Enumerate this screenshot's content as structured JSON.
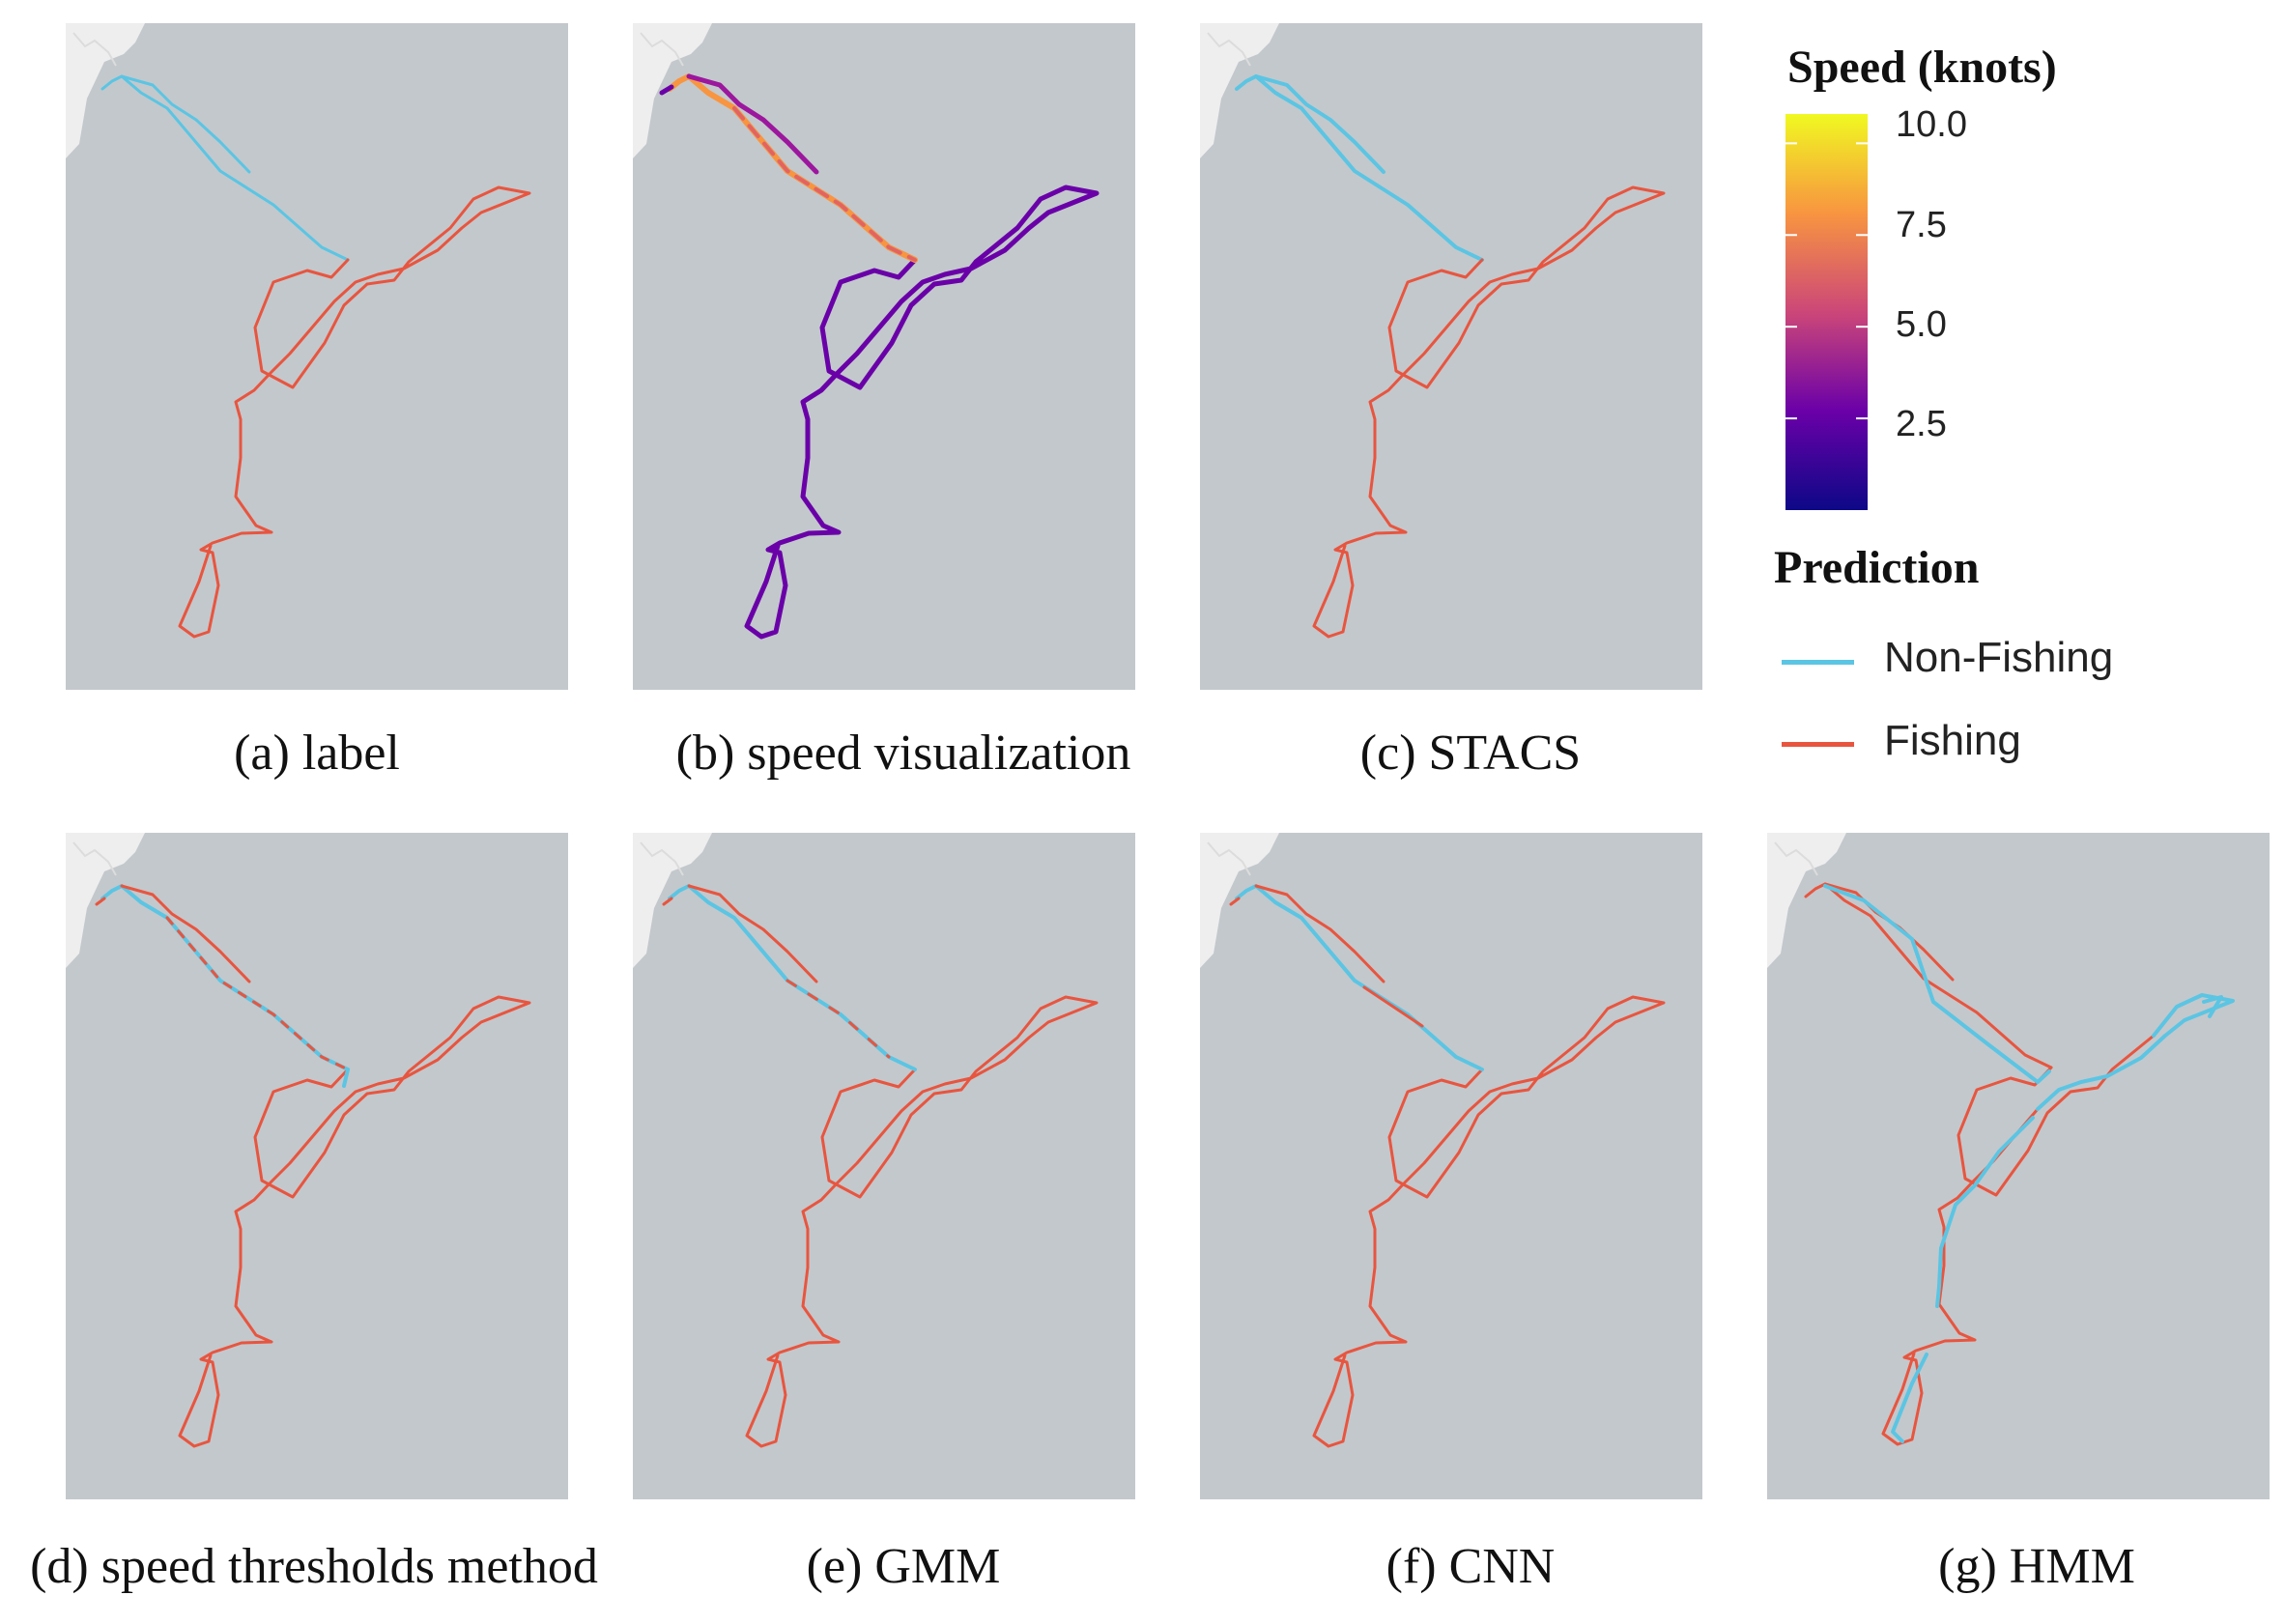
{
  "figure": {
    "panels": [
      {
        "id": "a",
        "caption": "(a) label",
        "mode": "label"
      },
      {
        "id": "b",
        "caption": "(b) speed visualization",
        "mode": "speed"
      },
      {
        "id": "c",
        "caption": "(c) STACS",
        "mode": "stacs"
      },
      {
        "id": "d",
        "caption": "(d) speed thresholds method",
        "mode": "threshold"
      },
      {
        "id": "e",
        "caption": "(e) GMM",
        "mode": "gmm"
      },
      {
        "id": "f",
        "caption": "(f) CNN",
        "mode": "cnn"
      },
      {
        "id": "g",
        "caption": "(g) HMM",
        "mode": "hmm"
      }
    ]
  },
  "legend": {
    "speed_title": "Speed (knots)",
    "speed_ticks": [
      "10.0",
      "7.5",
      "5.0",
      "2.5"
    ],
    "speed_tick_values": [
      10.0,
      7.5,
      5.0,
      2.5
    ],
    "speed_range": [
      0,
      10.8
    ],
    "prediction_title": "Prediction",
    "items": [
      {
        "label": "Non-Fishing",
        "color": "#5bc5e3"
      },
      {
        "label": "Fishing",
        "color": "#e8553f"
      }
    ]
  },
  "colors": {
    "sea": "#c3c8cc",
    "land": "#eeeeee",
    "non_fishing": "#5bc5e3",
    "fishing": "#e8553f",
    "speed_low": "#0d0887",
    "speed_mid": "#cc4778",
    "speed_high": "#f0f921"
  }
}
